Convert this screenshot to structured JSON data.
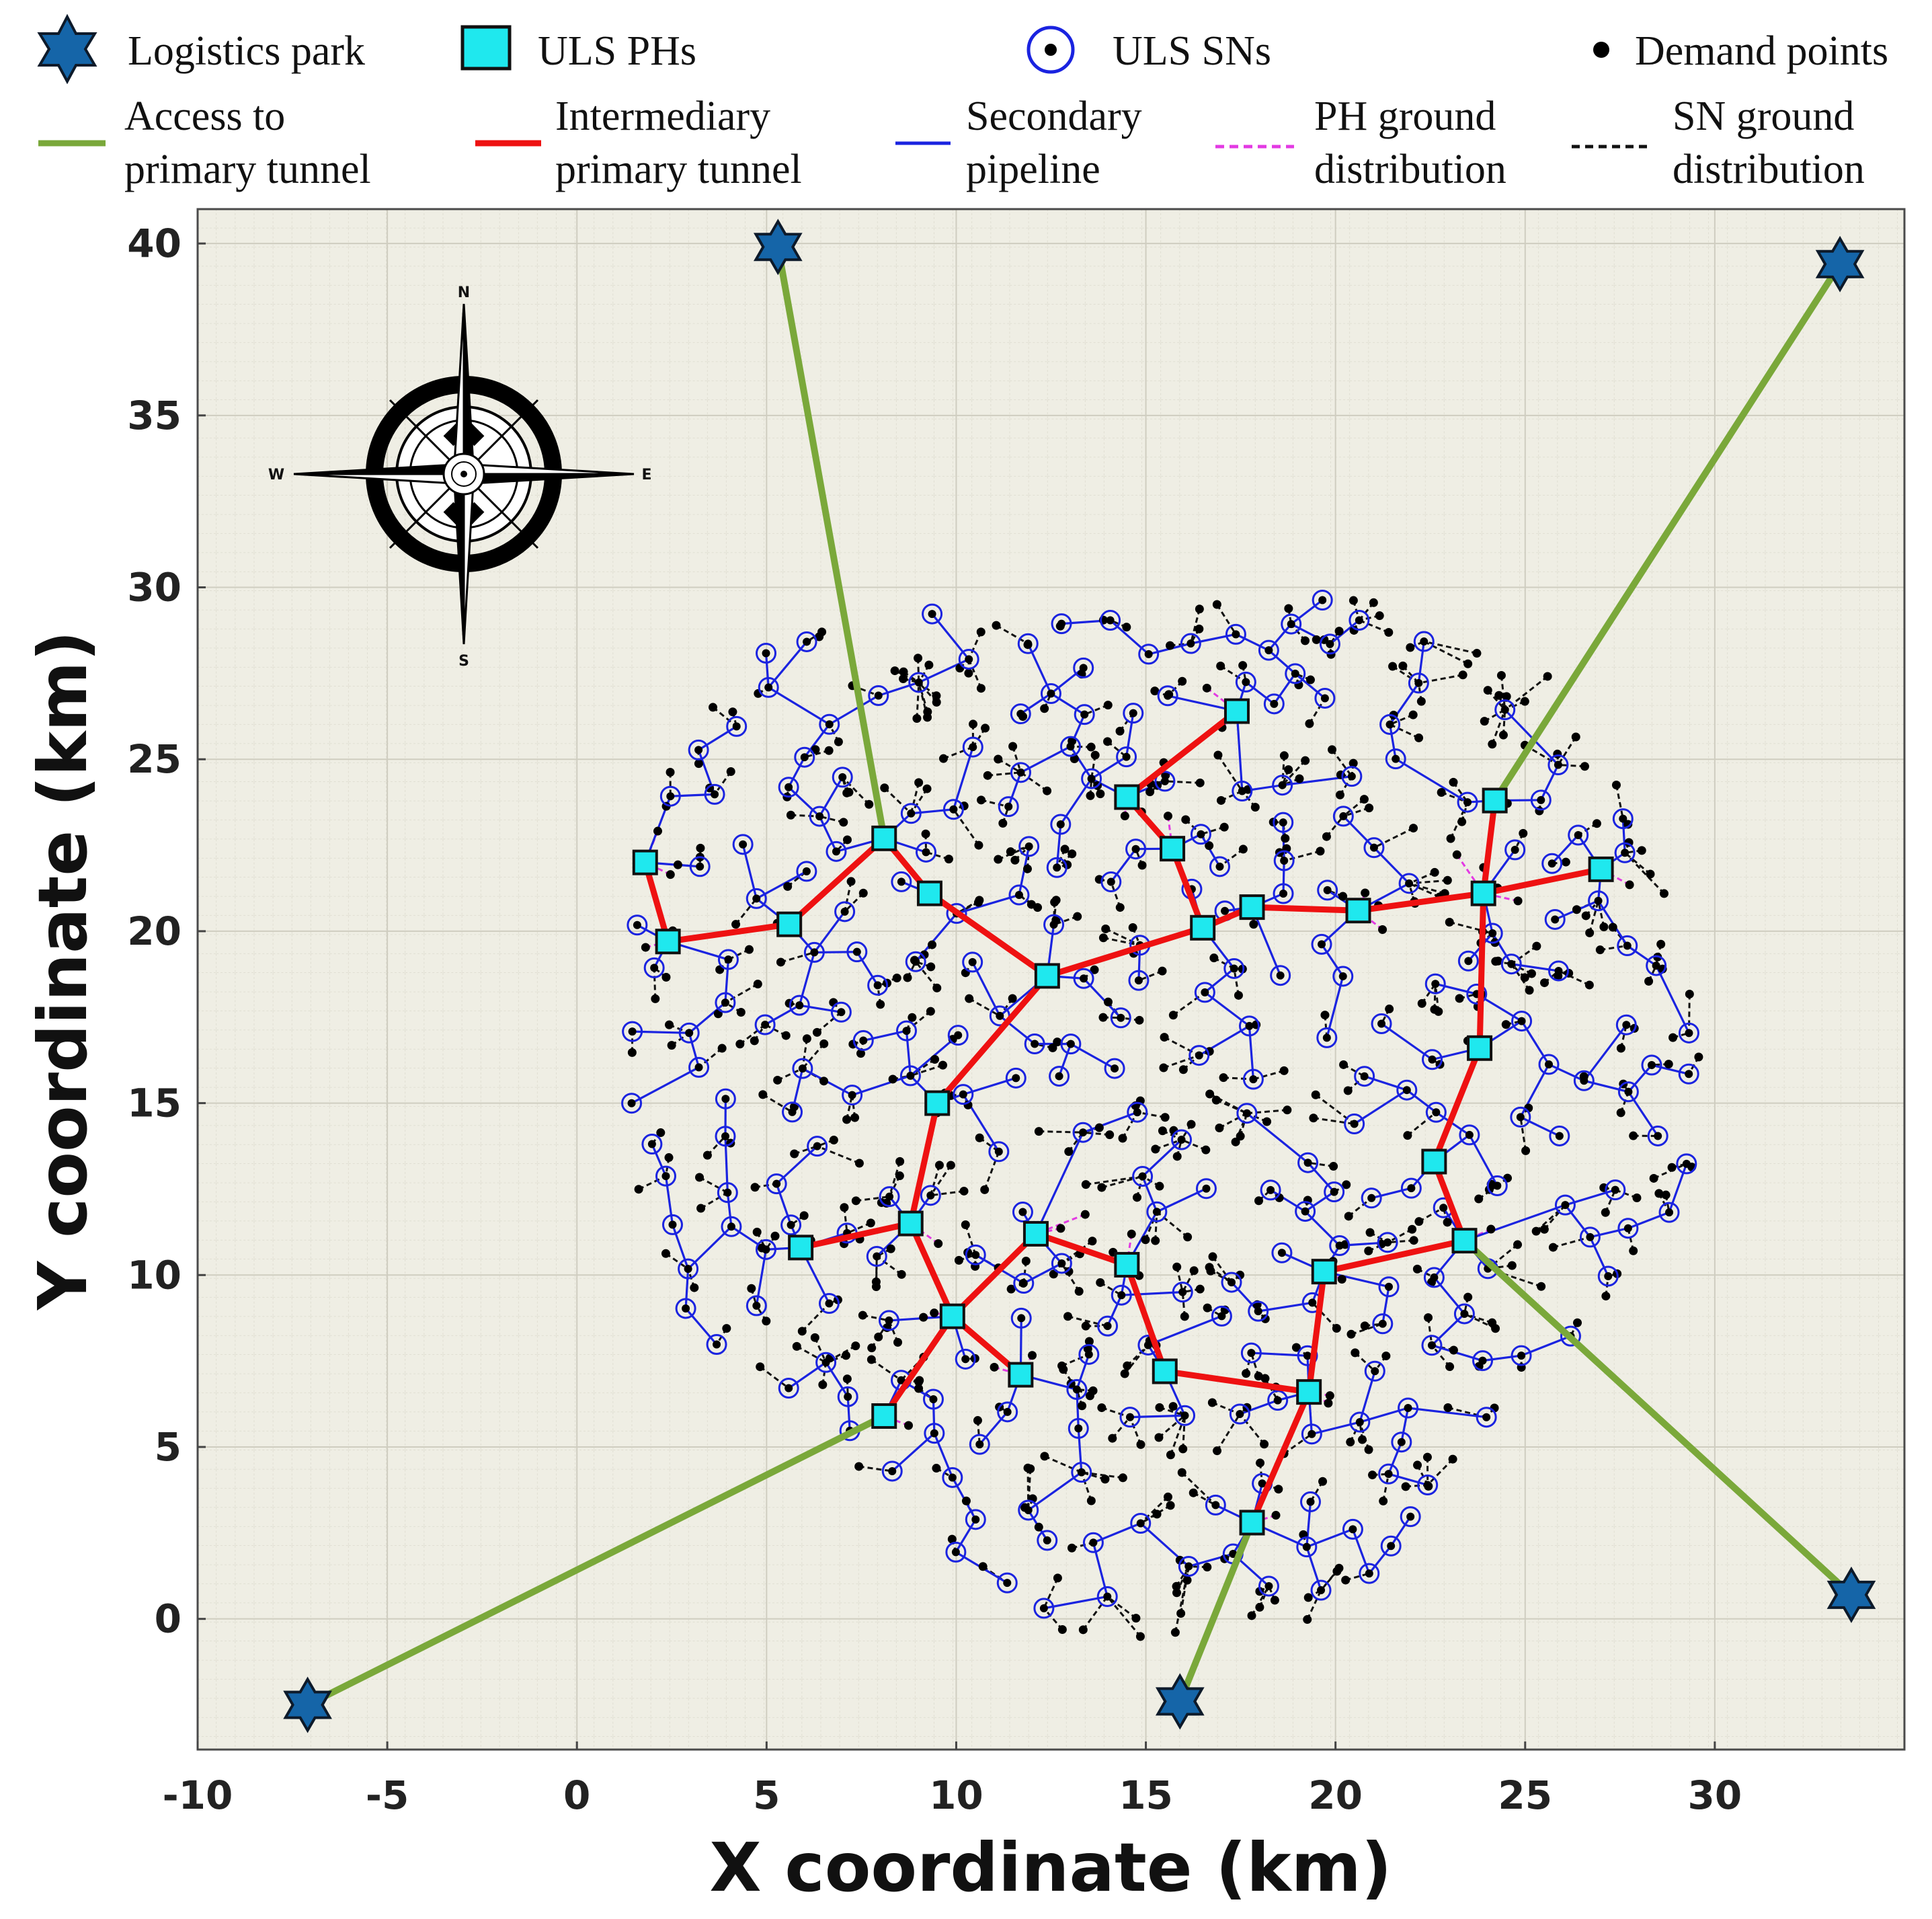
{
  "chart_data": {
    "type": "scatter",
    "title": "",
    "xlabel": "X coordinate (km)",
    "ylabel": "Y coordinate (km)",
    "xlim": [
      -10,
      35
    ],
    "ylim": [
      -3.8,
      41
    ],
    "xticks": [
      -10,
      -5,
      0,
      5,
      10,
      15,
      20,
      25,
      30
    ],
    "yticks": [
      0,
      5,
      10,
      15,
      20,
      25,
      30,
      35,
      40
    ],
    "grid": true,
    "legend": [
      {
        "key": "park",
        "label": "Logistics park"
      },
      {
        "key": "ph",
        "label": "ULS PHs"
      },
      {
        "key": "sn",
        "label": "ULS SNs"
      },
      {
        "key": "demand",
        "label": "Demand points"
      },
      {
        "key": "access",
        "label": [
          "Access to",
          "primary tunnel"
        ]
      },
      {
        "key": "primary",
        "label": [
          "Intermediary",
          "primary tunnel"
        ]
      },
      {
        "key": "secondary",
        "label": [
          "Secondary",
          "pipeline"
        ]
      },
      {
        "key": "ph_ground",
        "label": [
          "PH ground",
          "distribution"
        ]
      },
      {
        "key": "sn_ground",
        "label": [
          "SN ground",
          "distribution"
        ]
      }
    ],
    "compass": {
      "n": "N",
      "s": "S",
      "e": "E",
      "w": "W"
    },
    "logistics_parks": [
      {
        "id": "LP1",
        "x": 5.3,
        "y": 39.9
      },
      {
        "id": "LP2",
        "x": 33.3,
        "y": 39.4
      },
      {
        "id": "LP3",
        "x": -7.1,
        "y": -2.5
      },
      {
        "id": "LP4",
        "x": 15.9,
        "y": -2.4
      },
      {
        "id": "LP5",
        "x": 33.6,
        "y": 0.7
      }
    ],
    "phs": [
      {
        "id": "P1",
        "x": 1.8,
        "y": 22.0
      },
      {
        "id": "P2",
        "x": 2.4,
        "y": 19.7
      },
      {
        "id": "P3",
        "x": 5.6,
        "y": 20.2
      },
      {
        "id": "P4",
        "x": 8.1,
        "y": 22.7
      },
      {
        "id": "P5",
        "x": 9.3,
        "y": 21.1
      },
      {
        "id": "P6",
        "x": 12.4,
        "y": 18.7
      },
      {
        "id": "P7",
        "x": 14.5,
        "y": 23.9
      },
      {
        "id": "P8",
        "x": 15.7,
        "y": 22.4
      },
      {
        "id": "P9",
        "x": 17.4,
        "y": 26.4
      },
      {
        "id": "P10",
        "x": 16.5,
        "y": 20.1
      },
      {
        "id": "P11",
        "x": 17.8,
        "y": 20.7
      },
      {
        "id": "P12",
        "x": 20.6,
        "y": 20.6
      },
      {
        "id": "P13",
        "x": 24.2,
        "y": 23.8
      },
      {
        "id": "P14",
        "x": 23.9,
        "y": 21.1
      },
      {
        "id": "P15",
        "x": 27.0,
        "y": 21.8
      },
      {
        "id": "P16",
        "x": 23.8,
        "y": 16.6
      },
      {
        "id": "P17",
        "x": 9.5,
        "y": 15.0
      },
      {
        "id": "P18",
        "x": 22.6,
        "y": 13.3
      },
      {
        "id": "P19",
        "x": 23.4,
        "y": 11.0
      },
      {
        "id": "P20",
        "x": 19.7,
        "y": 10.1
      },
      {
        "id": "P21",
        "x": 8.8,
        "y": 11.5
      },
      {
        "id": "P22",
        "x": 5.9,
        "y": 10.8
      },
      {
        "id": "P23",
        "x": 12.1,
        "y": 11.2
      },
      {
        "id": "P24",
        "x": 14.5,
        "y": 10.3
      },
      {
        "id": "P25",
        "x": 9.9,
        "y": 8.8
      },
      {
        "id": "P26",
        "x": 11.7,
        "y": 7.1
      },
      {
        "id": "P27",
        "x": 15.5,
        "y": 7.2
      },
      {
        "id": "P28",
        "x": 19.3,
        "y": 6.6
      },
      {
        "id": "P29",
        "x": 8.1,
        "y": 5.9
      },
      {
        "id": "P30",
        "x": 17.8,
        "y": 2.8
      }
    ],
    "access_links": [
      [
        "LP1",
        "P4"
      ],
      [
        "LP2",
        "P13"
      ],
      [
        "LP3",
        "P29"
      ],
      [
        "LP4",
        "P30"
      ],
      [
        "LP5",
        "P19"
      ]
    ],
    "primary_links": [
      [
        "P1",
        "P2"
      ],
      [
        "P2",
        "P3"
      ],
      [
        "P3",
        "P4"
      ],
      [
        "P4",
        "P5"
      ],
      [
        "P5",
        "P6"
      ],
      [
        "P6",
        "P10"
      ],
      [
        "P7",
        "P8"
      ],
      [
        "P7",
        "P9"
      ],
      [
        "P8",
        "P10"
      ],
      [
        "P10",
        "P11"
      ],
      [
        "P11",
        "P12"
      ],
      [
        "P12",
        "P14"
      ],
      [
        "P13",
        "P14"
      ],
      [
        "P14",
        "P15"
      ],
      [
        "P14",
        "P16"
      ],
      [
        "P6",
        "P17"
      ],
      [
        "P16",
        "P18"
      ],
      [
        "P18",
        "P19"
      ],
      [
        "P19",
        "P20"
      ],
      [
        "P17",
        "P21"
      ],
      [
        "P21",
        "P22"
      ],
      [
        "P21",
        "P25"
      ],
      [
        "P25",
        "P23"
      ],
      [
        "P23",
        "P24"
      ],
      [
        "P25",
        "P26"
      ],
      [
        "P25",
        "P29"
      ],
      [
        "P24",
        "P27"
      ],
      [
        "P27",
        "P28"
      ],
      [
        "P20",
        "P28"
      ],
      [
        "P28",
        "P30"
      ]
    ],
    "sn_count": 280,
    "demand_count": 620,
    "region_center": [
      15.2,
      15.7
    ],
    "region_radius_km": 14.2
  }
}
